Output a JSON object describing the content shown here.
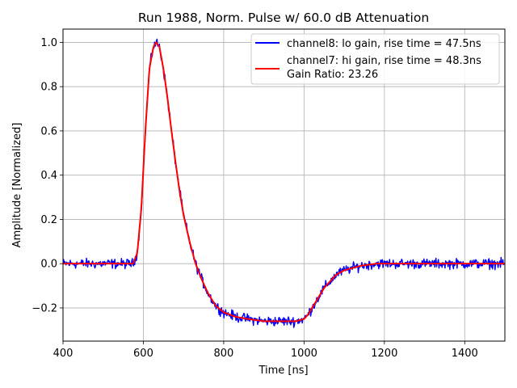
{
  "chart_data": {
    "type": "line",
    "title": "Run 1988, Norm. Pulse w/ 60.0 dB Attenuation",
    "xlabel": "Time [ns]",
    "ylabel": "Amplitude [Normalized]",
    "xlim": [
      400,
      1500
    ],
    "ylim": [
      -0.35,
      1.06
    ],
    "xticks": [
      400,
      600,
      800,
      1000,
      1200,
      1400
    ],
    "yticks": [
      -0.2,
      0.0,
      0.2,
      0.4,
      0.6,
      0.8,
      1.0
    ],
    "ytick_labels": [
      "−0.2",
      "0.0",
      "0.2",
      "0.4",
      "0.6",
      "0.8",
      "1.0"
    ],
    "grid": true,
    "legend_position": "top-right",
    "legend_extra_text": "Gain Ratio: 23.26",
    "series": [
      {
        "name": "channel8: lo gain, rise time = 47.5ns",
        "color": "#0000ff",
        "noisy": true,
        "x": [
          400,
          500,
          560,
          575,
          585,
          595,
          605,
          615,
          625,
          632,
          640,
          650,
          660,
          670,
          680,
          690,
          700,
          715,
          730,
          745,
          760,
          780,
          800,
          830,
          860,
          900,
          940,
          980,
          1000,
          1010,
          1020,
          1030,
          1040,
          1050,
          1060,
          1070,
          1080,
          1100,
          1120,
          1140,
          1160,
          1180,
          1200,
          1250,
          1300,
          1400,
          1500
        ],
        "y": [
          0.0,
          0.0,
          0.0,
          0.0,
          0.05,
          0.25,
          0.6,
          0.88,
          0.98,
          1.0,
          0.98,
          0.88,
          0.75,
          0.6,
          0.46,
          0.33,
          0.22,
          0.1,
          0.0,
          -0.07,
          -0.13,
          -0.19,
          -0.22,
          -0.24,
          -0.25,
          -0.26,
          -0.26,
          -0.26,
          -0.25,
          -0.23,
          -0.2,
          -0.17,
          -0.14,
          -0.11,
          -0.09,
          -0.07,
          -0.05,
          -0.03,
          -0.02,
          -0.01,
          -0.005,
          0.0,
          0.0,
          0.0,
          0.0,
          0.0,
          0.0
        ]
      },
      {
        "name": "channel7: hi gain, rise time = 48.3ns",
        "color": "#ff0000",
        "noisy": false,
        "x": [
          400,
          500,
          560,
          575,
          585,
          595,
          605,
          615,
          625,
          632,
          640,
          650,
          660,
          670,
          680,
          690,
          700,
          715,
          730,
          745,
          760,
          780,
          800,
          830,
          860,
          900,
          940,
          980,
          1000,
          1010,
          1020,
          1030,
          1040,
          1050,
          1060,
          1070,
          1080,
          1100,
          1120,
          1140,
          1160,
          1180,
          1200,
          1250,
          1300,
          1400,
          1500
        ],
        "y": [
          0.0,
          0.0,
          0.0,
          0.0,
          0.05,
          0.25,
          0.6,
          0.88,
          0.98,
          1.0,
          0.98,
          0.88,
          0.75,
          0.6,
          0.46,
          0.33,
          0.22,
          0.1,
          0.0,
          -0.07,
          -0.13,
          -0.19,
          -0.22,
          -0.24,
          -0.25,
          -0.26,
          -0.26,
          -0.26,
          -0.25,
          -0.23,
          -0.2,
          -0.17,
          -0.14,
          -0.11,
          -0.09,
          -0.07,
          -0.05,
          -0.03,
          -0.02,
          -0.01,
          -0.005,
          0.0,
          0.0,
          0.0,
          0.0,
          0.0,
          0.0
        ]
      }
    ]
  }
}
